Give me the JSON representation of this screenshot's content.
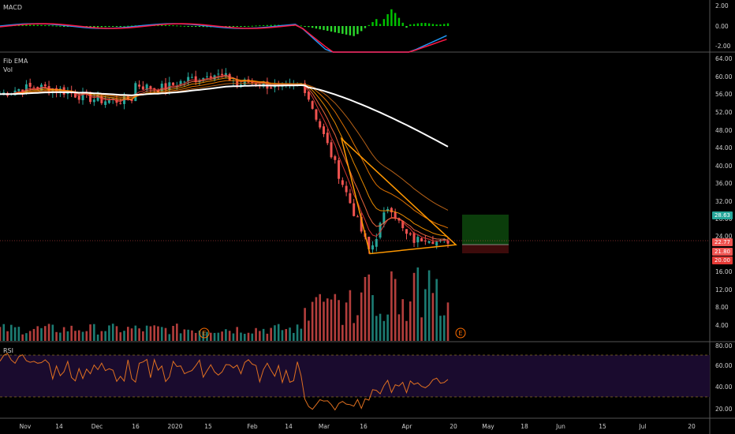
{
  "panes": {
    "macd": {
      "label": "MACD",
      "ticks": [
        "2.00",
        "0.00",
        "-2.00"
      ]
    },
    "price": {
      "label": "Fib EMA",
      "sublabel": "Vol",
      "ticks": [
        "64.00",
        "60.00",
        "56.00",
        "52.00",
        "48.00",
        "44.00",
        "40.00",
        "36.00",
        "32.00",
        "28.00",
        "24.00",
        "16.00",
        "12.00",
        "8.00",
        "4.00"
      ],
      "tags": {
        "target": "28.63",
        "last": "22.77",
        "entry": "21.80",
        "stop": "20.00"
      }
    },
    "rsi": {
      "label": "RSI",
      "ticks": [
        "80.00",
        "60.00",
        "40.00",
        "20.00"
      ]
    }
  },
  "earnings_marker": "E",
  "time_axis": [
    "Nov",
    "14",
    "Dec",
    "16",
    "2020",
    "15",
    "Feb",
    "14",
    "Mar",
    "16",
    "Apr",
    "20",
    "May",
    "18",
    "Jun",
    "15",
    "Jul",
    "20"
  ],
  "colors": {
    "up": "#26a69a",
    "down": "#ef5350",
    "bull_hist": "#00e600",
    "ema_long": "#ffffff",
    "triangle": "#ff9800",
    "rsi_line": "#e07020",
    "rsi_band": "#1a0b2e",
    "target_zone": "#0b3d0b",
    "stop_zone": "#3d0b0b"
  }
}
